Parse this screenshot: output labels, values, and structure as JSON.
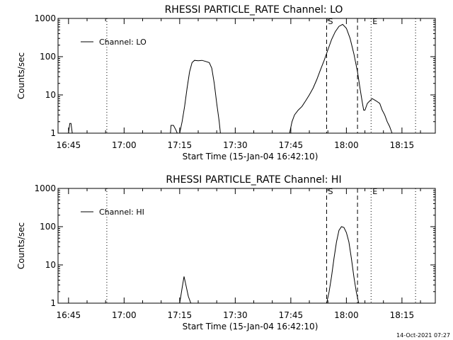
{
  "chart_data": [
    {
      "type": "line",
      "title": "RHESSI PARTICLE_RATE Channel: LO",
      "xlabel": "Start Time (15-Jan-04 16:42:10)",
      "ylabel": "Counts/sec",
      "yscale": "log",
      "ylim": [
        1,
        1000
      ],
      "yticks": [
        "1",
        "10",
        "100",
        "1000"
      ],
      "xlim": [
        "16:42:10",
        "18:24:00"
      ],
      "xticks": [
        "16:45",
        "17:00",
        "17:15",
        "17:30",
        "17:45",
        "18:00",
        "18:15"
      ],
      "grid": false,
      "legend_position": "top-left",
      "series": [
        {
          "name": "Channel: LO",
          "points": [
            [
              "16:45:00",
              1
            ],
            [
              "16:45:20",
              1.8
            ],
            [
              "16:45:40",
              1.8
            ],
            [
              "16:46:00",
              1
            ],
            [
              "17:12:30",
              1
            ],
            [
              "17:12:40",
              1.6
            ],
            [
              "17:13:20",
              1.6
            ],
            [
              "17:14:00",
              1.2
            ],
            [
              "17:14:20",
              1
            ],
            [
              "17:15:00",
              1
            ],
            [
              "17:15:40",
              2
            ],
            [
              "17:16:20",
              5
            ],
            [
              "17:17:00",
              15
            ],
            [
              "17:17:40",
              40
            ],
            [
              "17:18:20",
              70
            ],
            [
              "17:19:00",
              80
            ],
            [
              "17:20:00",
              78
            ],
            [
              "17:21:00",
              80
            ],
            [
              "17:22:00",
              75
            ],
            [
              "17:23:00",
              70
            ],
            [
              "17:23:40",
              50
            ],
            [
              "17:24:20",
              20
            ],
            [
              "17:25:00",
              6
            ],
            [
              "17:25:40",
              2
            ],
            [
              "17:26:00",
              1
            ],
            [
              "17:44:40",
              1
            ],
            [
              "17:45:20",
              2
            ],
            [
              "17:46:00",
              3
            ],
            [
              "17:47:00",
              4
            ],
            [
              "17:48:00",
              5
            ],
            [
              "17:49:00",
              7
            ],
            [
              "17:50:00",
              10
            ],
            [
              "17:51:00",
              15
            ],
            [
              "17:52:00",
              25
            ],
            [
              "17:53:00",
              45
            ],
            [
              "17:54:00",
              80
            ],
            [
              "17:55:00",
              150
            ],
            [
              "17:56:00",
              280
            ],
            [
              "17:57:00",
              450
            ],
            [
              "17:58:00",
              620
            ],
            [
              "17:59:00",
              700
            ],
            [
              "18:00:00",
              550
            ],
            [
              "18:01:00",
              300
            ],
            [
              "18:02:00",
              120
            ],
            [
              "18:03:00",
              40
            ],
            [
              "18:03:40",
              15
            ],
            [
              "18:04:20",
              6
            ],
            [
              "18:04:40",
              4
            ],
            [
              "18:05:00",
              4
            ],
            [
              "18:05:40",
              6
            ],
            [
              "18:06:20",
              7
            ],
            [
              "18:07:00",
              8
            ],
            [
              "18:08:00",
              7
            ],
            [
              "18:09:00",
              6
            ],
            [
              "18:09:40",
              4
            ],
            [
              "18:10:20",
              3
            ],
            [
              "18:11:00",
              2
            ],
            [
              "18:11:40",
              1.5
            ],
            [
              "18:12:20",
              1
            ]
          ]
        }
      ],
      "vlines": [
        {
          "x": "16:55:20",
          "style": "dotted"
        },
        {
          "x": "17:54:40",
          "style": "dashed",
          "label": "S"
        },
        {
          "x": "18:03:00",
          "style": "dashed"
        },
        {
          "x": "18:06:40",
          "style": "dotted",
          "label": "E"
        },
        {
          "x": "18:18:40",
          "style": "dotted"
        }
      ]
    },
    {
      "type": "line",
      "title": "RHESSI PARTICLE_RATE Channel: HI",
      "xlabel": "Start Time (15-Jan-04 16:42:10)",
      "ylabel": "Counts/sec",
      "yscale": "log",
      "ylim": [
        1,
        1000
      ],
      "yticks": [
        "1",
        "10",
        "100",
        "1000"
      ],
      "xlim": [
        "16:42:10",
        "18:24:00"
      ],
      "xticks": [
        "16:45",
        "17:00",
        "17:15",
        "17:30",
        "17:45",
        "18:00",
        "18:15"
      ],
      "grid": false,
      "legend_position": "top-left",
      "series": [
        {
          "name": "Channel: HI",
          "points": [
            [
              "17:15:00",
              1
            ],
            [
              "17:15:40",
              2.5
            ],
            [
              "17:16:10",
              5
            ],
            [
              "17:16:40",
              3
            ],
            [
              "17:17:20",
              1.5
            ],
            [
              "17:18:00",
              1
            ],
            [
              "17:54:40",
              1
            ],
            [
              "17:55:20",
              2
            ],
            [
              "17:56:00",
              5
            ],
            [
              "17:56:40",
              15
            ],
            [
              "17:57:20",
              40
            ],
            [
              "17:58:00",
              80
            ],
            [
              "17:58:40",
              100
            ],
            [
              "17:59:20",
              95
            ],
            [
              "18:00:00",
              70
            ],
            [
              "18:00:40",
              40
            ],
            [
              "18:01:20",
              15
            ],
            [
              "18:02:00",
              5
            ],
            [
              "18:02:40",
              2
            ],
            [
              "18:03:20",
              1
            ]
          ]
        }
      ],
      "vlines": [
        {
          "x": "16:55:20",
          "style": "dotted"
        },
        {
          "x": "17:54:40",
          "style": "dashed",
          "label": "S"
        },
        {
          "x": "18:03:00",
          "style": "dashed"
        },
        {
          "x": "18:06:40",
          "style": "dotted",
          "label": "E"
        },
        {
          "x": "18:18:40",
          "style": "dotted"
        }
      ]
    }
  ],
  "footer": {
    "timestamp": "14-Oct-2021 07:27"
  }
}
